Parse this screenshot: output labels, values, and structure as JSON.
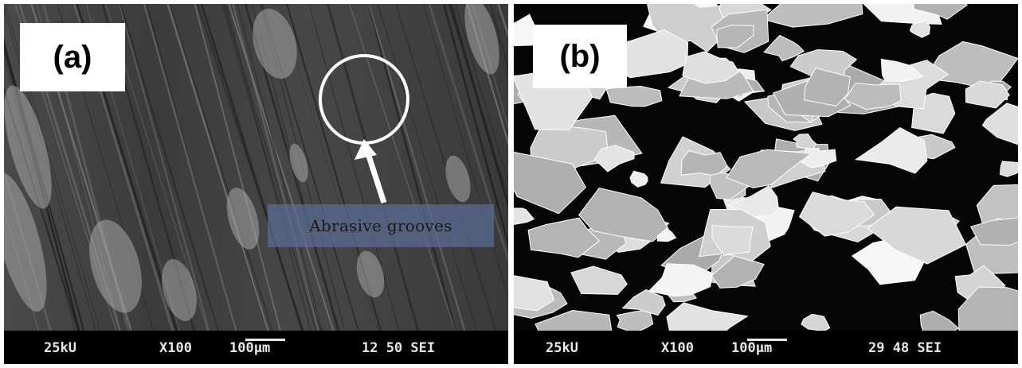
{
  "panel_a": {
    "label": "(a)",
    "annotation": "Abrasive grooves",
    "footer": {
      "voltage": "25kU",
      "magnification": "X100",
      "scale": "100μm",
      "id": "12 50 SEI"
    }
  },
  "panel_b": {
    "label": "(b)",
    "footer": {
      "voltage": "25kU",
      "magnification": "X100",
      "scale": "100μm",
      "id": "29 48 SEI"
    }
  },
  "colors": {
    "border": "#ffffff",
    "annotation_box": "#5a6e96",
    "circle": "#ffffff"
  }
}
